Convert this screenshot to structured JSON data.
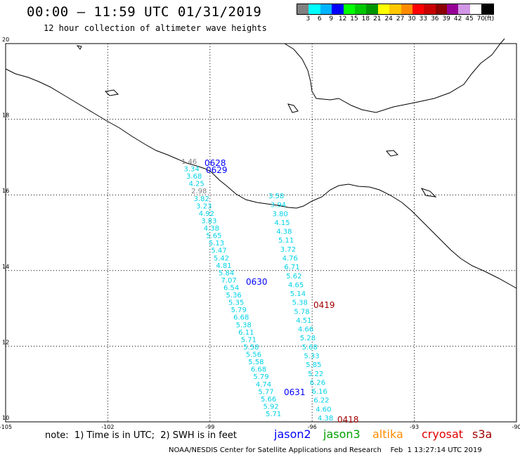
{
  "title": "00:00 – 11:59 UTC 01/31/2019",
  "subtitle": "12 hour collection of altimeter wave heights",
  "legend": {
    "unit": "(ft)",
    "labels": [
      "3",
      "6",
      "9",
      "12",
      "15",
      "18",
      "21",
      "24",
      "27",
      "30",
      "33",
      "36",
      "39",
      "42",
      "45",
      "70"
    ],
    "colors": [
      "#808080",
      "#00ffff",
      "#00b4ff",
      "#0000ff",
      "#00ff00",
      "#00c800",
      "#009600",
      "#ffff00",
      "#ffc800",
      "#ff8c00",
      "#ff0000",
      "#c80000",
      "#8c0000",
      "#960096",
      "#d296e6",
      "#ffffff",
      "#000000"
    ]
  },
  "axes": {
    "lon_labels": [
      "-105",
      "-102",
      "-99",
      "-96",
      "-93",
      "-90"
    ],
    "lat_labels": [
      "20",
      "18",
      "16",
      "14",
      "12",
      "10"
    ]
  },
  "tracks": [
    {
      "name": "track-west",
      "points": [
        {
          "text": "1.46",
          "color": "#808080"
        },
        {
          "text": "3.34",
          "color": "#00d2e6"
        },
        {
          "text": "3.68",
          "color": "#00d2e6"
        },
        {
          "text": "4.25",
          "color": "#00d2e6"
        },
        {
          "text": "2.98",
          "color": "#808080"
        },
        {
          "text": "3.82",
          "color": "#00d2e6"
        },
        {
          "text": "3.23",
          "color": "#00d2e6"
        },
        {
          "text": "4.92",
          "color": "#00d2e6"
        },
        {
          "text": "3.83",
          "color": "#00d2e6"
        },
        {
          "text": "4.38",
          "color": "#00d2e6"
        },
        {
          "text": "5.65",
          "color": "#00d2e6"
        },
        {
          "text": "5.13",
          "color": "#00d2e6"
        },
        {
          "text": "5.47",
          "color": "#00d2e6"
        },
        {
          "text": "5.42",
          "color": "#00d2e6"
        },
        {
          "text": "4.81",
          "color": "#00d2e6"
        },
        {
          "text": "5.84",
          "color": "#00d2e6"
        },
        {
          "text": "7.07",
          "color": "#00d2e6"
        },
        {
          "text": "6.54",
          "color": "#00d2e6"
        },
        {
          "text": "5.36",
          "color": "#00d2e6"
        },
        {
          "text": "5.35",
          "color": "#00d2e6"
        },
        {
          "text": "5.79",
          "color": "#00d2e6"
        },
        {
          "text": "6.68",
          "color": "#00d2e6"
        },
        {
          "text": "5.38",
          "color": "#00d2e6"
        },
        {
          "text": "6.11",
          "color": "#00d2e6"
        },
        {
          "text": "5.71",
          "color": "#00d2e6"
        },
        {
          "text": "5.58",
          "color": "#00d2e6"
        },
        {
          "text": "5.56",
          "color": "#00d2e6"
        },
        {
          "text": "5.58",
          "color": "#00d2e6"
        },
        {
          "text": "6.68",
          "color": "#00d2e6"
        },
        {
          "text": "5.79",
          "color": "#00d2e6"
        },
        {
          "text": "4.74",
          "color": "#00d2e6"
        },
        {
          "text": "5.77",
          "color": "#00d2e6"
        },
        {
          "text": "5.66",
          "color": "#00d2e6"
        },
        {
          "text": "5.92",
          "color": "#00d2e6"
        },
        {
          "text": "5.71",
          "color": "#00d2e6"
        }
      ]
    },
    {
      "name": "track-east",
      "points": [
        {
          "text": "3.58",
          "color": "#00d2e6"
        },
        {
          "text": "3.94",
          "color": "#00d2e6"
        },
        {
          "text": "3.80",
          "color": "#00d2e6"
        },
        {
          "text": "4.15",
          "color": "#00d2e6"
        },
        {
          "text": "4.38",
          "color": "#00d2e6"
        },
        {
          "text": "5.11",
          "color": "#00d2e6"
        },
        {
          "text": "3.72",
          "color": "#00d2e6"
        },
        {
          "text": "4.76",
          "color": "#00d2e6"
        },
        {
          "text": "6.71",
          "color": "#00d2e6"
        },
        {
          "text": "5.62",
          "color": "#00d2e6"
        },
        {
          "text": "4.65",
          "color": "#00d2e6"
        },
        {
          "text": "5.14",
          "color": "#00d2e6"
        },
        {
          "text": "5.38",
          "color": "#00d2e6"
        },
        {
          "text": "5.78",
          "color": "#00d2e6"
        },
        {
          "text": "4.51",
          "color": "#00d2e6"
        },
        {
          "text": "4.66",
          "color": "#00d2e6"
        },
        {
          "text": "5.28",
          "color": "#00d2e6"
        },
        {
          "text": "5.68",
          "color": "#00d2e6"
        },
        {
          "text": "5.33",
          "color": "#00d2e6"
        },
        {
          "text": "5.85",
          "color": "#00d2e6"
        },
        {
          "text": "5.22",
          "color": "#00d2e6"
        },
        {
          "text": "6.26",
          "color": "#00d2e6"
        },
        {
          "text": "6.16",
          "color": "#00d2e6"
        },
        {
          "text": "6.22",
          "color": "#00d2e6"
        },
        {
          "text": "4.60",
          "color": "#00d2e6"
        },
        {
          "text": "4.38",
          "color": "#00d2e6"
        }
      ]
    }
  ],
  "pass_labels": [
    {
      "text": "0628",
      "color": "#0000ff"
    },
    {
      "text": "0629",
      "color": "#0000ff"
    },
    {
      "text": "0630",
      "color": "#0000ff"
    },
    {
      "text": "0631",
      "color": "#0000ff"
    },
    {
      "text": "0419",
      "color": "#a00000"
    },
    {
      "text": "0418",
      "color": "#a00000"
    }
  ],
  "note": "note:  1) Time is in UTC;  2) SWH is in feet",
  "satellites": [
    {
      "name": "jason2",
      "color": "#0000ff"
    },
    {
      "name": "jason3",
      "color": "#00a000"
    },
    {
      "name": "altika",
      "color": "#ff8c00"
    },
    {
      "name": "cryosat",
      "color": "#e00000"
    },
    {
      "name": "s3a",
      "color": "#a00000"
    }
  ],
  "footer": "NOAA/NESDIS Center for Satellite Applications and Research    Feb  1 13:27:14 UTC 2019"
}
